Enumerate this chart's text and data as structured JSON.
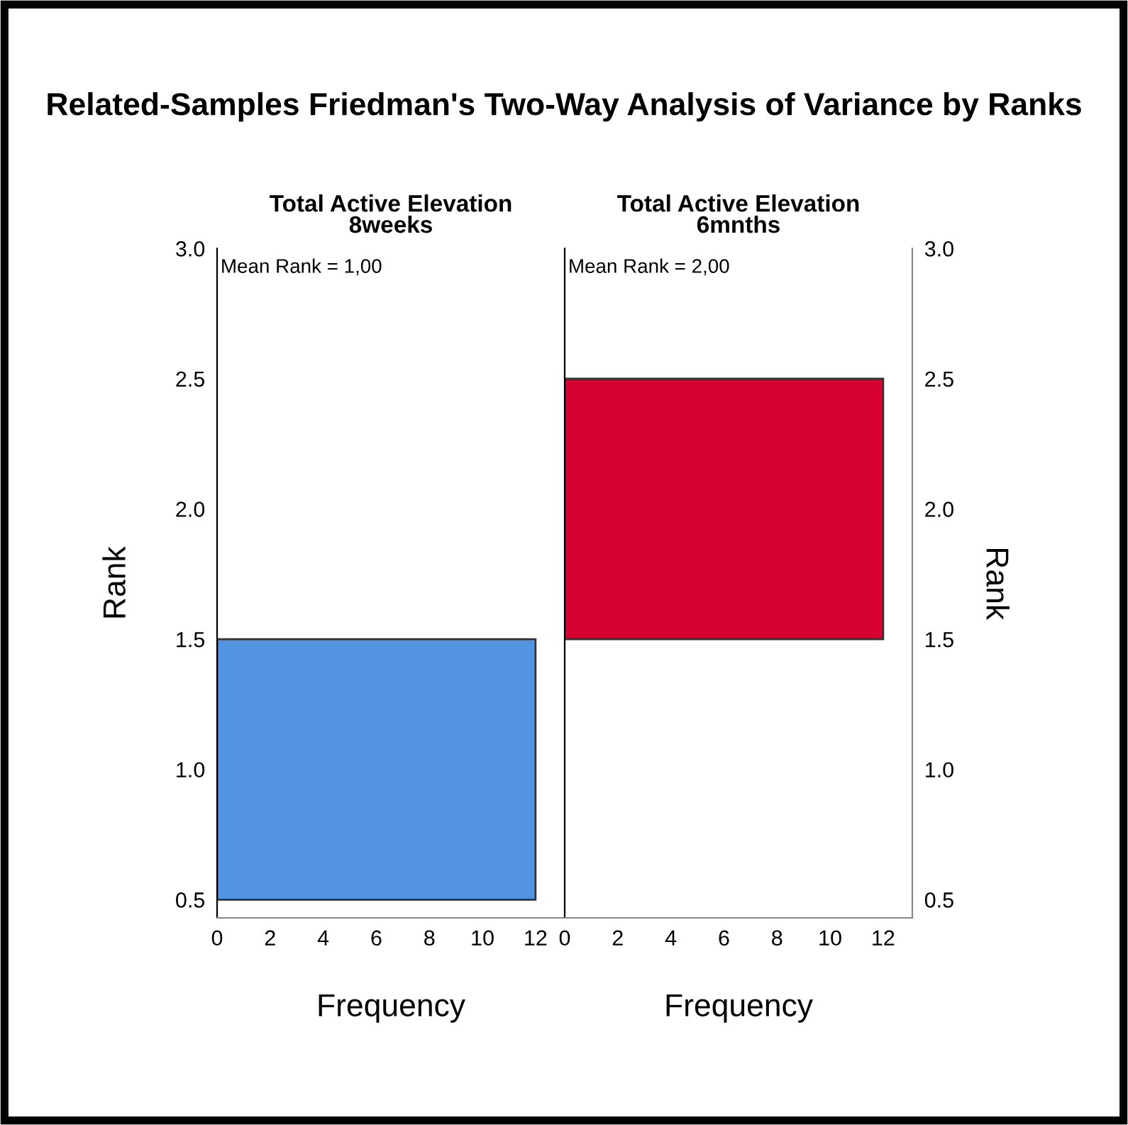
{
  "chart_data": [
    {
      "type": "histogram",
      "orientation": "horizontal",
      "title": "Related-Samples Friedman's Two-Way Analysis of Variance by Ranks",
      "subtitle": "Total Active Elevation\n8weeks",
      "xlabel": "Frequency",
      "ylabel": "Rank",
      "bins": [
        0.5,
        1.5,
        2.5
      ],
      "values": [
        12,
        0
      ],
      "color": "#5294e2",
      "xlim": [
        0,
        13.1
      ],
      "xticks": [
        0,
        2,
        4,
        6,
        8,
        10,
        12
      ],
      "ylim": [
        0.43,
        3.0
      ],
      "yticks": [
        {
          "value": 0.5,
          "label": "0.5"
        },
        {
          "value": 1.0,
          "label": "1.0"
        },
        {
          "value": 1.5,
          "label": "1.5"
        },
        {
          "value": 2.0,
          "label": "2.0"
        },
        {
          "value": 2.5,
          "label": "2.5"
        },
        {
          "value": 3.0,
          "label": "3.0"
        }
      ],
      "annotations": [
        "Mean Rank = 1,00"
      ]
    },
    {
      "type": "histogram",
      "orientation": "horizontal",
      "subtitle": "Total Active Elevation\n6mnths",
      "xlabel": "Frequency",
      "ylabel": "Rank",
      "bins": [
        0.5,
        1.5,
        2.5
      ],
      "values": [
        0,
        12
      ],
      "color": "#d5002f",
      "xlim": [
        0,
        13.1
      ],
      "xticks": [
        0,
        2,
        4,
        6,
        8,
        10,
        12
      ],
      "ylim": [
        0.43,
        3.0
      ],
      "yticks": [
        {
          "value": 0.5,
          "label": "0.5"
        },
        {
          "value": 1.0,
          "label": "1.0"
        },
        {
          "value": 1.5,
          "label": "1.5"
        },
        {
          "value": 2.0,
          "label": "2.0"
        },
        {
          "value": 2.5,
          "label": "2.5"
        },
        {
          "value": 3.0,
          "label": "3.0"
        }
      ],
      "annotations": [
        "Mean Rank = 2,00"
      ]
    }
  ]
}
